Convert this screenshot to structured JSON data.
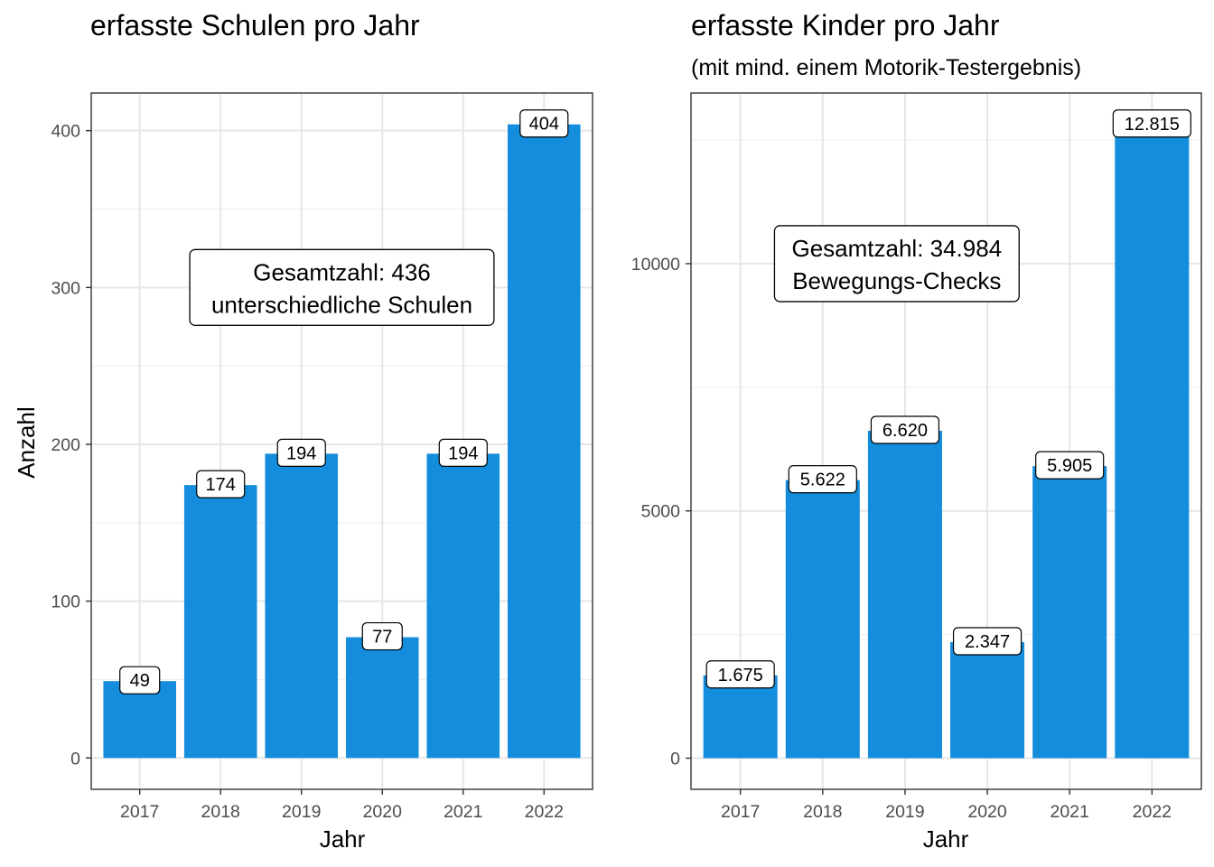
{
  "chart_data": [
    {
      "type": "bar",
      "title": "erfasste Schulen pro Jahr",
      "subtitle": "",
      "xlabel": "Jahr",
      "ylabel": "Anzahl",
      "categories": [
        "2017",
        "2018",
        "2019",
        "2020",
        "2021",
        "2022"
      ],
      "values": [
        49,
        174,
        194,
        77,
        194,
        404
      ],
      "value_labels": [
        "49",
        "174",
        "194",
        "77",
        "194",
        "404"
      ],
      "ylim": [
        -20,
        424
      ],
      "yticks": [
        0,
        100,
        200,
        300,
        400
      ],
      "ytick_labels": [
        "0",
        "100",
        "200",
        "300",
        "400"
      ],
      "grid": true,
      "bar_color": "#138ddc",
      "annotation": {
        "lines": [
          "Gesamtzahl: 436",
          "unterschiedliche Schulen"
        ],
        "x_center": 2.5,
        "y_center": 300
      }
    },
    {
      "type": "bar",
      "title": "erfasste Kinder pro Jahr",
      "subtitle": "(mit mind. einem Motorik-Testergebnis)",
      "xlabel": "Jahr",
      "ylabel": "",
      "categories": [
        "2017",
        "2018",
        "2019",
        "2020",
        "2021",
        "2022"
      ],
      "values": [
        1675,
        5622,
        6620,
        2347,
        5905,
        12815
      ],
      "value_labels": [
        "1.675",
        "5.622",
        "6.620",
        "2.347",
        "5.905",
        "12.815"
      ],
      "ylim": [
        -630,
        13450
      ],
      "yticks": [
        0,
        5000,
        10000
      ],
      "ytick_labels": [
        "0",
        "5000",
        "10000"
      ],
      "grid": true,
      "bar_color": "#138ddc",
      "annotation": {
        "lines": [
          "Gesamtzahl:  34.984",
          "Bewegungs-Checks"
        ],
        "x_center": 1.9,
        "y_center": 10000
      }
    }
  ]
}
